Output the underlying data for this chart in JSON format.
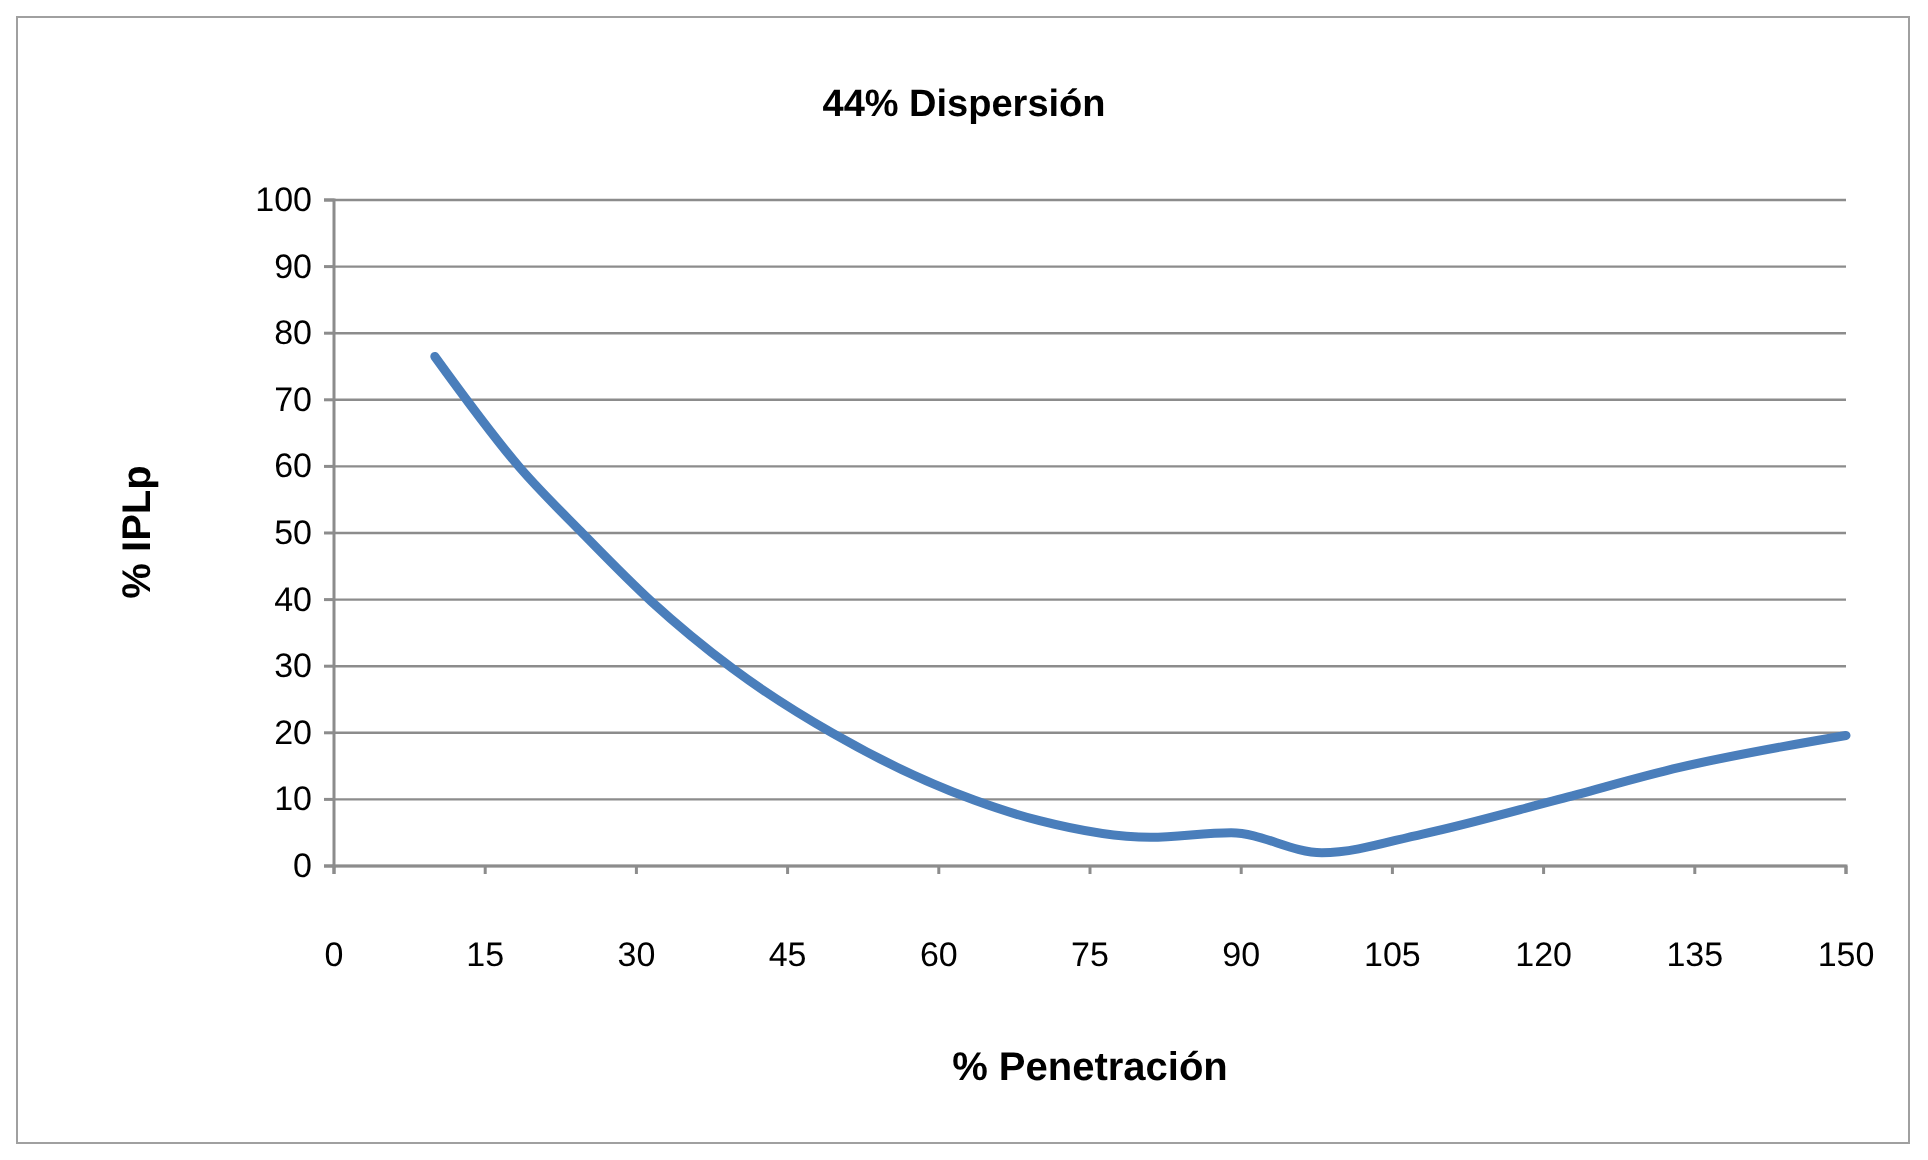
{
  "chart_data": {
    "type": "line",
    "title": "44% Dispersión",
    "xlabel": "% Penetración",
    "ylabel": "% IPLp",
    "x": [
      10,
      18.5,
      24.5,
      31.5,
      39.5,
      49.5,
      63.5,
      70,
      81,
      89,
      98,
      108,
      121.5,
      133.5,
      150
    ],
    "series": [
      {
        "color": "#4a7ebb",
        "values": [
          76.5,
          59.7,
          50.2,
          39.7,
          29.7,
          19.9,
          9.9,
          6.8,
          4.3,
          5.0,
          2.0,
          4.8,
          10,
          14.8,
          19.6
        ]
      }
    ],
    "xlim": [
      0,
      150
    ],
    "xticks": [
      0,
      15,
      30,
      45,
      60,
      75,
      90,
      105,
      120,
      135,
      150
    ],
    "ylim": [
      0,
      100
    ],
    "yticks": [
      0,
      10,
      20,
      30,
      40,
      50,
      60,
      70,
      80,
      90,
      100
    ],
    "grid": "y",
    "marker": "none",
    "line_style": "solid"
  }
}
